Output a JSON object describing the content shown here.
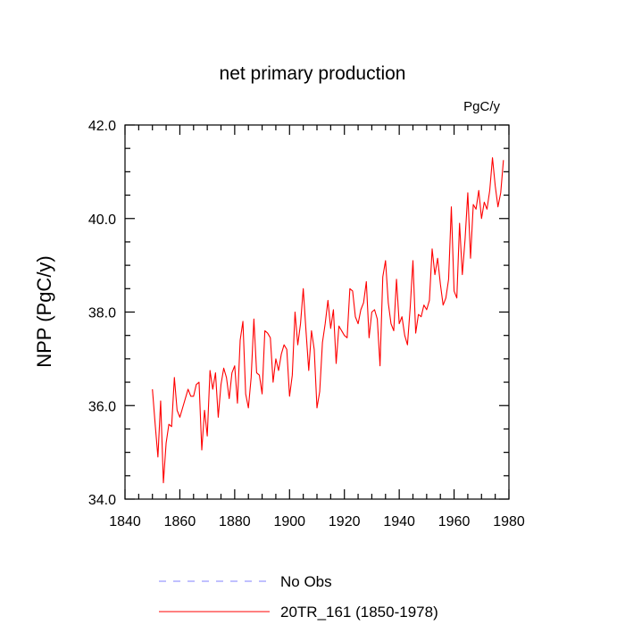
{
  "chart_data": {
    "type": "line",
    "title": "net primary production",
    "units": "PgC/y",
    "ylabel": "NPP  (PgC/y)",
    "xlabel": "",
    "xlim": [
      1840,
      1980
    ],
    "ylim": [
      34.0,
      42.0
    ],
    "x_ticks": [
      1840,
      1860,
      1880,
      1900,
      1920,
      1940,
      1960,
      1980
    ],
    "x_tick_labels": [
      "1840",
      "1860",
      "1880",
      "1900",
      "1920",
      "1940",
      "1960",
      "1980"
    ],
    "y_ticks": [
      34.0,
      36.0,
      38.0,
      40.0,
      42.0
    ],
    "y_tick_labels": [
      "34.0",
      "36.0",
      "38.0",
      "40.0",
      "42.0"
    ],
    "legend_position": "bottom-center",
    "series": [
      {
        "name": "No Obs",
        "color": "#8080ff",
        "style": "dashed",
        "x": [],
        "values": []
      },
      {
        "name": "20TR_161 (1850-1978)",
        "color": "#ff0000",
        "style": "solid",
        "x": [
          1850,
          1851,
          1852,
          1853,
          1854,
          1855,
          1856,
          1857,
          1858,
          1859,
          1860,
          1861,
          1862,
          1863,
          1864,
          1865,
          1866,
          1867,
          1868,
          1869,
          1870,
          1871,
          1872,
          1873,
          1874,
          1875,
          1876,
          1877,
          1878,
          1879,
          1880,
          1881,
          1882,
          1883,
          1884,
          1885,
          1886,
          1887,
          1888,
          1889,
          1890,
          1891,
          1892,
          1893,
          1894,
          1895,
          1896,
          1897,
          1898,
          1899,
          1900,
          1901,
          1902,
          1903,
          1904,
          1905,
          1906,
          1907,
          1908,
          1909,
          1910,
          1911,
          1912,
          1913,
          1914,
          1915,
          1916,
          1917,
          1918,
          1919,
          1920,
          1921,
          1922,
          1923,
          1924,
          1925,
          1926,
          1927,
          1928,
          1929,
          1930,
          1931,
          1932,
          1933,
          1934,
          1935,
          1936,
          1937,
          1938,
          1939,
          1940,
          1941,
          1942,
          1943,
          1944,
          1945,
          1946,
          1947,
          1948,
          1949,
          1950,
          1951,
          1952,
          1953,
          1954,
          1955,
          1956,
          1957,
          1958,
          1959,
          1960,
          1961,
          1962,
          1963,
          1964,
          1965,
          1966,
          1967,
          1968,
          1969,
          1970,
          1971,
          1972,
          1973,
          1974,
          1975,
          1976,
          1977,
          1978
        ],
        "values": [
          36.35,
          35.6,
          34.9,
          36.1,
          34.35,
          35.2,
          35.6,
          35.55,
          36.6,
          35.9,
          35.75,
          35.95,
          36.15,
          36.35,
          36.2,
          36.2,
          36.45,
          36.5,
          35.05,
          35.9,
          35.35,
          36.75,
          36.35,
          36.7,
          35.75,
          36.45,
          36.8,
          36.6,
          36.15,
          36.7,
          36.85,
          36.05,
          37.4,
          37.8,
          36.25,
          35.95,
          36.6,
          37.85,
          36.7,
          36.65,
          36.25,
          37.6,
          37.55,
          37.45,
          36.5,
          37.0,
          36.75,
          37.1,
          37.3,
          37.2,
          36.2,
          36.65,
          38.0,
          37.3,
          37.75,
          38.5,
          37.6,
          36.75,
          37.6,
          37.2,
          35.95,
          36.3,
          37.35,
          37.75,
          38.25,
          37.65,
          38.05,
          36.9,
          37.7,
          37.6,
          37.5,
          37.45,
          38.5,
          38.45,
          37.9,
          37.75,
          38.05,
          38.2,
          38.65,
          37.45,
          38.0,
          38.05,
          37.85,
          36.85,
          38.75,
          39.1,
          38.2,
          37.75,
          37.6,
          38.7,
          37.75,
          37.9,
          37.5,
          37.3,
          38.1,
          39.1,
          37.55,
          37.95,
          37.9,
          38.15,
          38.05,
          38.25,
          39.35,
          38.8,
          39.15,
          38.6,
          38.15,
          38.3,
          38.7,
          40.25,
          38.45,
          38.3,
          39.9,
          38.8,
          39.55,
          40.55,
          39.15,
          40.3,
          40.2,
          40.6,
          40.0,
          40.35,
          40.2,
          40.6,
          41.3,
          40.7,
          40.25,
          40.55,
          41.25
        ]
      }
    ]
  }
}
